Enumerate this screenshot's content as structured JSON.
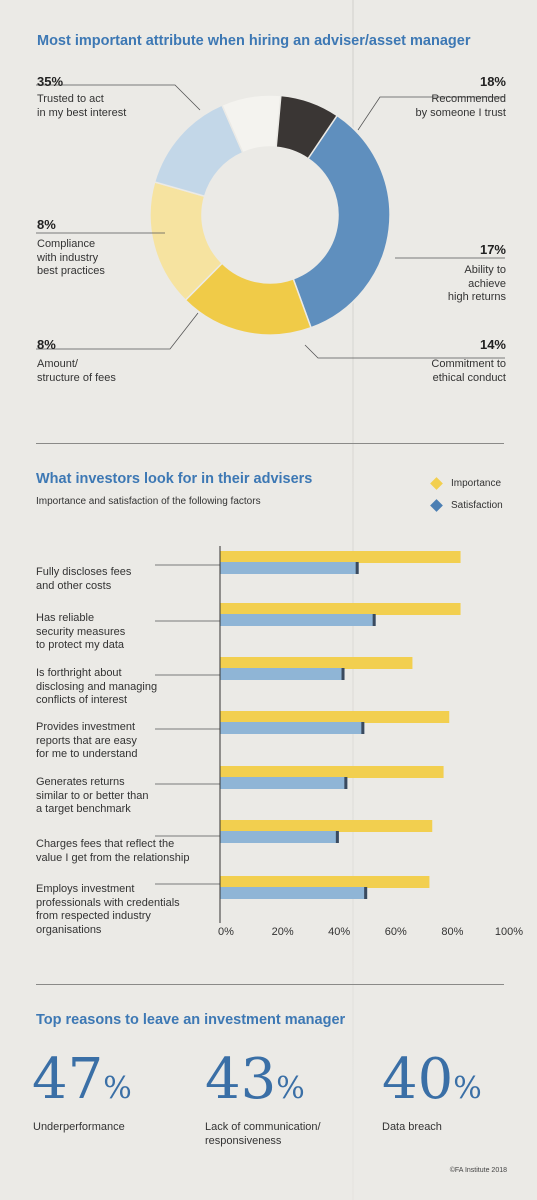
{
  "donut": {
    "title": "Most important attribute when hiring an adviser/asset manager",
    "items": [
      {
        "pct": "35%",
        "label": "Trusted to act\nin my best interest"
      },
      {
        "pct": "18%",
        "label": "Recommended\nby someone I trust"
      },
      {
        "pct": "17%",
        "label": "Ability to\nachieve\nhigh returns"
      },
      {
        "pct": "14%",
        "label": "Commitment to\nethical conduct"
      },
      {
        "pct": "8%",
        "label": "Amount/\nstructure of fees"
      },
      {
        "pct": "8%",
        "label": "Compliance\nwith industry\nbest practices"
      }
    ]
  },
  "bars": {
    "title": "What investors look for in their advisers",
    "subtitle": "Importance and satisfaction of the following factors",
    "legend": [
      "Importance",
      "Satisfaction"
    ],
    "ticks": [
      "0%",
      "20%",
      "40%",
      "60%",
      "80%",
      "100%"
    ],
    "factors": [
      "Fully discloses fees\nand other costs",
      "Has reliable\nsecurity measures\nto protect my data",
      "Is forthright about\ndisclosing and managing\nconflicts of interest",
      "Provides investment\nreports that are easy\nfor me to understand",
      "Generates returns\nsimilar to or better than\na target benchmark",
      "Charges fees that reflect the\nvalue I get from the relationship",
      "Employs investment\nprofessionals with credentials\nfrom respected industry\norganisations"
    ]
  },
  "reasons": {
    "title": "Top reasons to leave an investment manager",
    "items": [
      {
        "value": "47",
        "sign": "%",
        "label": "Underperformance"
      },
      {
        "value": "43",
        "sign": "%",
        "label": "Lack of communication/\nresponsiveness"
      },
      {
        "value": "40",
        "sign": "%",
        "label": "Data breach"
      }
    ]
  },
  "credit": "©FA Institute 2018",
  "colors": {
    "title_blue": "#3d78b4",
    "importance": "#f2cf4f",
    "satisfaction": "#8fb5d6"
  },
  "chart_data": [
    {
      "type": "pie",
      "title": "Most important attribute when hiring an adviser/asset manager",
      "categories": [
        "Trusted to act in my best interest",
        "Recommended by someone I trust",
        "Ability to achieve high returns",
        "Commitment to ethical conduct",
        "Amount/structure of fees",
        "Compliance with industry best practices"
      ],
      "values": [
        35,
        18,
        17,
        14,
        8,
        8
      ],
      "colors": [
        "#5f8fbe",
        "#f0cb48",
        "#f6e3a0",
        "#c3d7e8",
        "#f4f3ef",
        "#3a3634"
      ]
    },
    {
      "type": "bar",
      "orientation": "horizontal",
      "title": "What investors look for in their advisers",
      "subtitle": "Importance and satisfaction of the following factors",
      "categories": [
        "Fully discloses fees and other costs",
        "Has reliable security measures to protect my data",
        "Is forthright about disclosing and managing conflicts of interest",
        "Provides investment reports that are easy for me to understand",
        "Generates returns similar to or better than a target benchmark",
        "Charges fees that reflect the value I get from the relationship",
        "Employs investment professionals with credentials from respected industry organisations"
      ],
      "series": [
        {
          "name": "Importance",
          "values": [
            85,
            85,
            68,
            81,
            79,
            75,
            74
          ]
        },
        {
          "name": "Satisfaction",
          "values": [
            49,
            55,
            44,
            51,
            45,
            42,
            52
          ]
        }
      ],
      "xlim": [
        0,
        100
      ],
      "legend": "top-right"
    }
  ]
}
